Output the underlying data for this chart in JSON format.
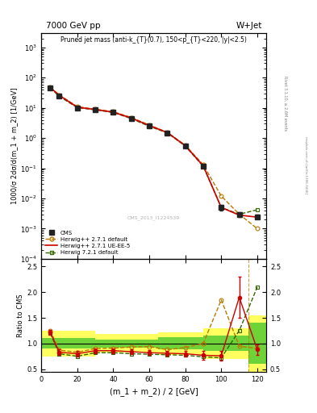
{
  "title_top": "7000 GeV pp",
  "title_right": "W+Jet",
  "plot_title": "Pruned jet mass (anti-k_{T}(0.7), 150<p_{T}<220, |y|<2.5)",
  "ylabel_main": "1000/σ 2dσ/d(m_1 + m_2) [1/GeV]",
  "ylabel_ratio": "Ratio to CMS",
  "xlabel": "(m_1 + m_2) / 2 [GeV]",
  "watermark": "CMS_2013_I1224539",
  "cms_label": "CMS",
  "x_data": [
    5,
    10,
    20,
    30,
    40,
    50,
    60,
    70,
    80,
    90,
    100,
    110,
    120
  ],
  "cms_y": [
    45,
    25,
    10,
    8.5,
    7.0,
    4.5,
    2.5,
    1.5,
    0.55,
    0.12,
    0.005,
    0.003,
    0.0025
  ],
  "cms_yerr_lo": [
    3,
    2,
    0.8,
    0.6,
    0.5,
    0.35,
    0.2,
    0.12,
    0.05,
    0.012,
    0.001,
    0.0005,
    0.0004
  ],
  "cms_yerr_hi": [
    3,
    2,
    0.8,
    0.6,
    0.5,
    0.35,
    0.2,
    0.12,
    0.05,
    0.012,
    0.001,
    0.0005,
    0.0004
  ],
  "hw271_default_y": [
    48,
    27,
    11,
    9.0,
    7.5,
    4.8,
    2.7,
    1.55,
    0.58,
    0.13,
    0.012,
    0.003,
    0.001
  ],
  "hw271_ueee5_y": [
    47,
    26,
    10.5,
    8.8,
    7.2,
    4.6,
    2.6,
    1.52,
    0.56,
    0.12,
    0.005,
    0.0028,
    0.0024
  ],
  "hw721_default_y": [
    46,
    24,
    10.2,
    8.6,
    7.0,
    4.4,
    2.45,
    1.48,
    0.54,
    0.115,
    0.005,
    0.003,
    0.0042
  ],
  "ratio_hw271_default": [
    1.25,
    0.87,
    0.83,
    0.9,
    0.91,
    0.93,
    0.94,
    0.88,
    0.92,
    1.0,
    1.85,
    0.95,
    0.9
  ],
  "ratio_hw271_ueee5": [
    1.22,
    0.83,
    0.8,
    0.86,
    0.86,
    0.84,
    0.82,
    0.81,
    0.8,
    0.77,
    0.76,
    1.9,
    0.88
  ],
  "ratio_hw721_default": [
    1.2,
    0.8,
    0.75,
    0.82,
    0.82,
    0.8,
    0.79,
    0.78,
    0.77,
    0.74,
    0.72,
    1.25,
    2.1
  ],
  "ratio_hw271_ueee5_err_lo": [
    0.05,
    0.05,
    0.05,
    0.05,
    0.05,
    0.05,
    0.05,
    0.05,
    0.05,
    0.08,
    0.1,
    0.4,
    0.1
  ],
  "ratio_hw271_ueee5_err_hi": [
    0.05,
    0.05,
    0.05,
    0.05,
    0.05,
    0.05,
    0.05,
    0.05,
    0.05,
    0.08,
    0.1,
    0.4,
    0.1
  ],
  "band_x_edges": [
    0,
    30,
    65,
    90,
    115,
    130
  ],
  "band_stat": [
    0.1,
    0.08,
    0.12,
    0.15,
    0.4
  ],
  "band_syst": [
    0.25,
    0.18,
    0.22,
    0.3,
    0.55
  ],
  "color_cms": "#222222",
  "color_hw271_default": "#bb7700",
  "color_hw271_ueee5": "#cc0000",
  "color_hw721_default": "#336600",
  "xlim": [
    0,
    125
  ],
  "ylim_main": [
    0.0001,
    3000.0
  ],
  "ylim_ratio": [
    0.45,
    2.65
  ],
  "ratio_yticks": [
    0.5,
    1.0,
    1.5,
    2.0,
    2.5
  ],
  "rivet_text": "Rivet 3.1.10, ≥ 2.6M events",
  "mcplots_text": "mcplots.cern.ch [arXiv:1306.3436]"
}
